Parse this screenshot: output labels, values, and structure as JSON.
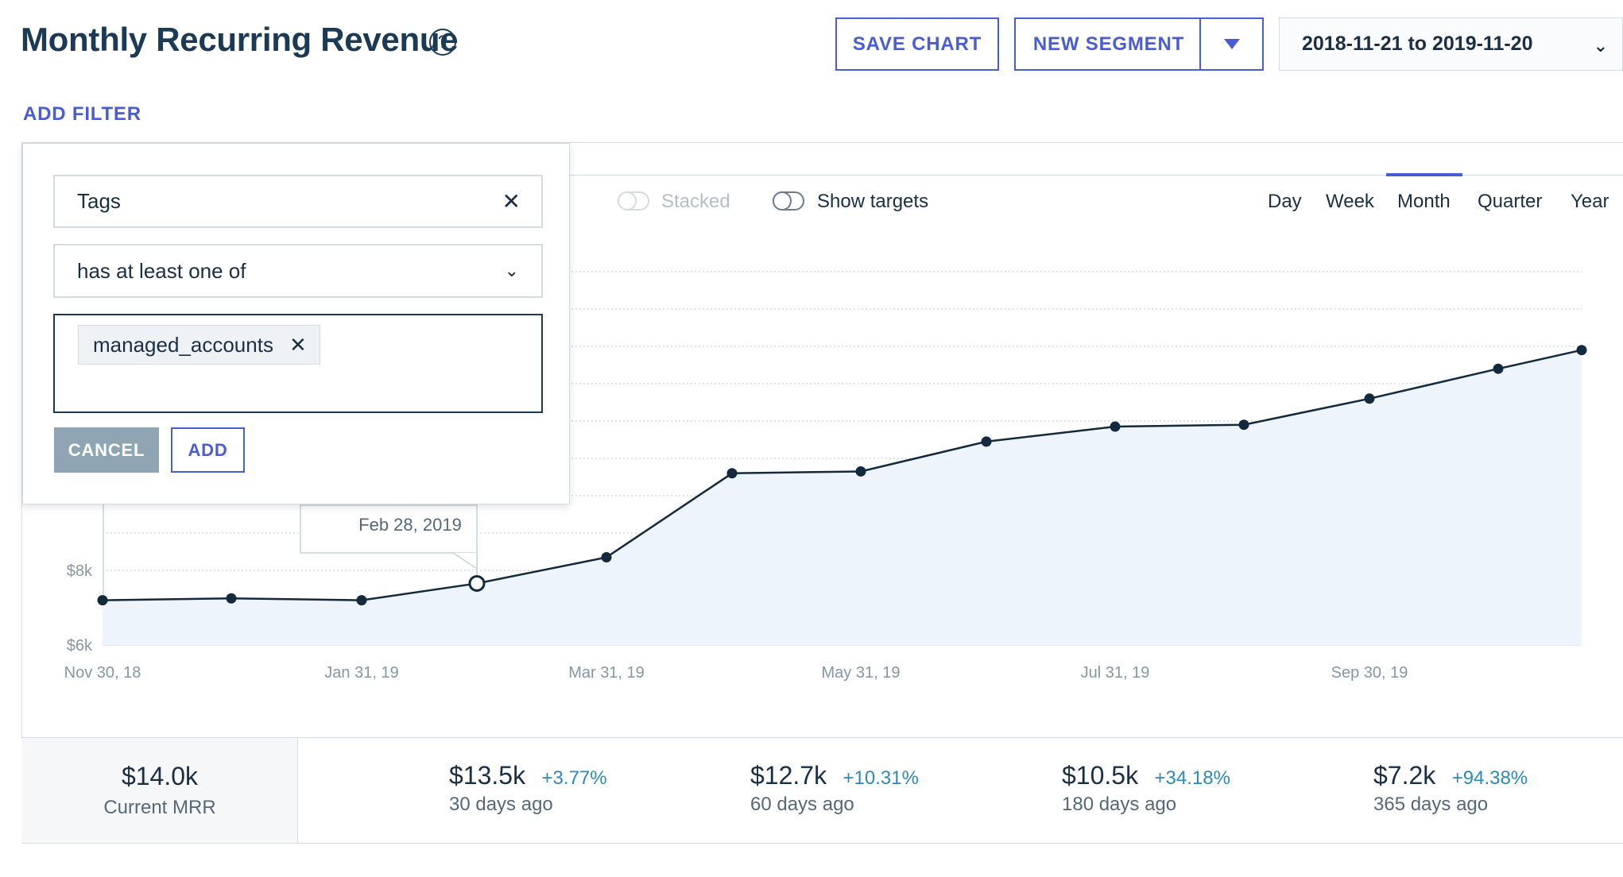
{
  "header": {
    "title": "Monthly Recurring Revenue",
    "help_icon": "help-circle-icon",
    "save_chart": "SAVE CHART",
    "new_segment": "NEW SEGMENT",
    "date_range": "2018-11-21 to 2019-11-20"
  },
  "add_filter": "ADD FILTER",
  "filter_popover": {
    "field": "Tags",
    "condition": "has at least one of",
    "values": [
      "managed_accounts"
    ],
    "cancel": "CANCEL",
    "add": "ADD"
  },
  "chart_controls": {
    "stacked": "Stacked",
    "show_targets": "Show targets",
    "periods": [
      "Day",
      "Week",
      "Month",
      "Quarter",
      "Year"
    ],
    "selected_period": "Month"
  },
  "tooltip": {
    "date": "Feb 28, 2019"
  },
  "chart_data": {
    "type": "area",
    "x": [
      "Nov 30, 18",
      "Dec 31, 18",
      "Jan 31, 19",
      "Feb 28, 19",
      "Mar 31, 19",
      "Apr 30, 19",
      "May 31, 19",
      "Jun 30, 19",
      "Jul 31, 19",
      "Aug 31, 19",
      "Sep 30, 19",
      "Oct 31, 19",
      "Nov 20, 19"
    ],
    "values": [
      7.2,
      7.25,
      7.2,
      7.65,
      8.35,
      10.6,
      10.65,
      11.45,
      11.85,
      11.9,
      12.6,
      13.4,
      13.9
    ],
    "x_tick_labels": [
      "Nov 30, 18",
      "Jan 31, 19",
      "Mar 31, 19",
      "May 31, 19",
      "Jul 31, 19",
      "Sep 30, 19"
    ],
    "y_tick_labels": [
      "$6k",
      "$8k"
    ],
    "ylim": [
      6,
      16
    ],
    "yunit": "$k",
    "grid": true,
    "colors": {
      "line": "#13293d",
      "fill": "#eef4fb",
      "grid": "#c9d2db"
    }
  },
  "summary": {
    "current": {
      "value": "$14.0k",
      "label": "Current MRR"
    },
    "items": [
      {
        "value": "$13.5k",
        "pct": "+3.77%",
        "label": "30 days ago"
      },
      {
        "value": "$12.7k",
        "pct": "+10.31%",
        "label": "60 days ago"
      },
      {
        "value": "$10.5k",
        "pct": "+34.18%",
        "label": "180 days ago"
      },
      {
        "value": "$7.2k",
        "pct": "+94.38%",
        "label": "365 days ago"
      }
    ]
  },
  "colors": {
    "accent": "#4a5bd6",
    "text": "#1b2f44",
    "positive": "#2b8ac0"
  }
}
